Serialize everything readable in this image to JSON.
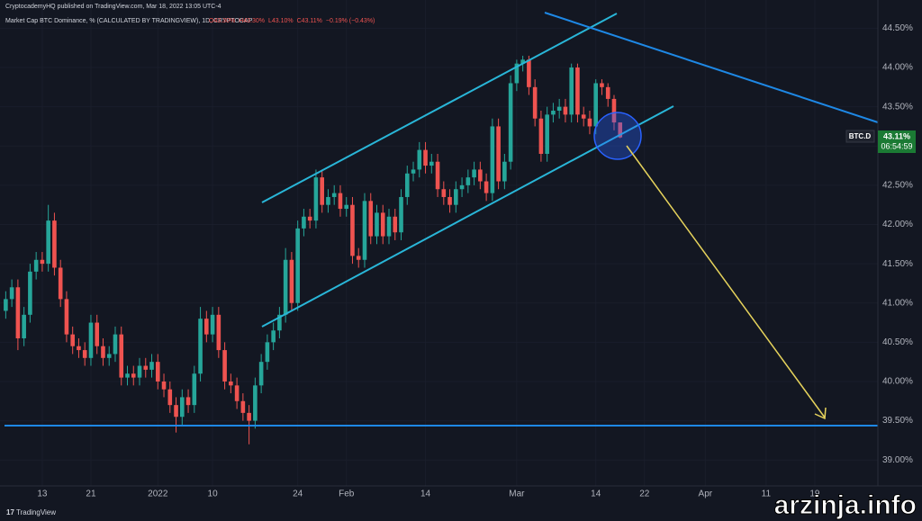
{
  "chart_data": {
    "type": "candlestick",
    "subtitle": "CryptocademyHQ published on TradingView.com, Mar 18, 2022 13:05 UTC-4",
    "title": "Market Cap BTC Dominance, % (CALCULATED BY TRADINGVIEW), 1D, CRYPTOCAP",
    "ohlc_legend": [
      "O43.30%",
      "H43.30%",
      "L43.10%",
      "C43.11%",
      "−0.19% (−0.43%)"
    ],
    "last_price": {
      "symbol": "BTC.D",
      "value_label": "43.11%",
      "countdown": "06:54:59"
    },
    "brand": "TradingView",
    "watermark": "arzinja.info",
    "up_color": "#26a69a",
    "down_color": "#ef5350",
    "grid": true,
    "ylim": [
      38.67,
      44.86
    ],
    "yticks": [
      {
        "value": 39.0,
        "label": "39.00%"
      },
      {
        "value": 39.5,
        "label": "39.50%"
      },
      {
        "value": 40.0,
        "label": "40.00%"
      },
      {
        "value": 40.5,
        "label": "40.50%"
      },
      {
        "value": 41.0,
        "label": "41.00%"
      },
      {
        "value": 41.5,
        "label": "41.50%"
      },
      {
        "value": 42.0,
        "label": "42.00%"
      },
      {
        "value": 42.5,
        "label": "42.50%"
      },
      {
        "value": 43.0,
        "label": "43.00%"
      },
      {
        "value": 43.5,
        "label": "43.50%"
      },
      {
        "value": 44.0,
        "label": "44.00%"
      },
      {
        "value": 44.5,
        "label": "44.50%"
      }
    ],
    "categories": [
      null,
      null,
      null,
      null,
      null,
      null,
      "13",
      null,
      null,
      null,
      null,
      null,
      null,
      null,
      "21",
      null,
      null,
      null,
      null,
      null,
      null,
      null,
      null,
      null,
      null,
      "2022",
      null,
      null,
      null,
      null,
      null,
      null,
      null,
      null,
      "10",
      null,
      null,
      null,
      null,
      null,
      null,
      null,
      null,
      null,
      null,
      null,
      null,
      null,
      "24",
      null,
      null,
      null,
      null,
      null,
      null,
      null,
      "Feb",
      null,
      null,
      null,
      null,
      null,
      null,
      null,
      null,
      null,
      null,
      null,
      null,
      "14",
      null,
      null,
      null,
      null,
      null,
      null,
      null,
      null,
      null,
      null,
      null,
      null,
      null,
      null,
      "Mar",
      null,
      null,
      null,
      null,
      null,
      null,
      null,
      null,
      null,
      null,
      null,
      null,
      "14",
      null,
      null,
      null,
      null,
      null,
      null,
      null,
      "22",
      null,
      null,
      null,
      null,
      null,
      null,
      null,
      null,
      null,
      "Apr",
      null,
      null,
      null,
      null,
      null,
      null,
      null,
      null,
      null,
      "11",
      null,
      null,
      null,
      null,
      null,
      null,
      null,
      "19",
      null,
      null,
      null,
      null,
      null,
      null
    ],
    "open": [
      40.9,
      41.05,
      41.2,
      40.55,
      40.85,
      41.4,
      41.55,
      41.5,
      42.05,
      41.45,
      41.05,
      40.6,
      40.45,
      40.4,
      40.3,
      40.75,
      40.45,
      40.3,
      40.35,
      40.6,
      40.05,
      40.1,
      40.05,
      40.2,
      40.15,
      40.25,
      40.0,
      39.9,
      39.7,
      39.55,
      39.8,
      39.7,
      40.1,
      40.8,
      40.6,
      40.85,
      40.4,
      40.0,
      39.95,
      39.75,
      39.6,
      39.5,
      39.95,
      40.25,
      40.5,
      40.65,
      40.85,
      41.55,
      41.0,
      41.95,
      42.1,
      42.05,
      42.6,
      42.25,
      42.35,
      42.4,
      42.2,
      42.25,
      41.6,
      41.55,
      42.3,
      41.85,
      42.15,
      41.85,
      42.1,
      41.9,
      42.35,
      42.65,
      42.7,
      42.95,
      42.75,
      42.8,
      42.45,
      42.35,
      42.25,
      42.45,
      42.5,
      42.6,
      42.7,
      42.55,
      42.4,
      43.25,
      42.55,
      42.8,
      43.8,
      44.05,
      44.1,
      43.75,
      43.35,
      42.9,
      43.4,
      43.45,
      43.5,
      43.4,
      44.0,
      43.4,
      43.35,
      43.25,
      43.8,
      43.75,
      43.6,
      43.3,
      null,
      null,
      null,
      null,
      null,
      null,
      null,
      null,
      null,
      null,
      null,
      null,
      null,
      null,
      null,
      null,
      null,
      null,
      null,
      null,
      null,
      null,
      null,
      null,
      null,
      null,
      null,
      null,
      null,
      null,
      null,
      null,
      null,
      null,
      null,
      null,
      null,
      null
    ],
    "high": [
      41.15,
      41.3,
      41.3,
      40.95,
      41.5,
      41.65,
      41.65,
      42.25,
      42.15,
      41.55,
      41.15,
      40.7,
      40.55,
      40.5,
      40.85,
      40.85,
      40.55,
      40.45,
      40.7,
      40.7,
      40.2,
      40.2,
      40.3,
      40.3,
      40.35,
      40.35,
      40.1,
      40.0,
      39.8,
      39.9,
      39.9,
      40.2,
      40.95,
      40.9,
      40.95,
      40.95,
      40.5,
      40.1,
      40.05,
      39.85,
      39.7,
      40.05,
      40.35,
      40.6,
      40.75,
      40.95,
      41.7,
      41.65,
      42.05,
      42.2,
      42.2,
      42.7,
      42.7,
      42.45,
      42.5,
      42.5,
      42.35,
      42.35,
      41.7,
      42.4,
      42.4,
      42.25,
      42.25,
      42.2,
      42.2,
      42.45,
      42.75,
      42.8,
      43.05,
      43.05,
      42.9,
      42.9,
      42.55,
      42.45,
      42.55,
      42.6,
      42.7,
      42.8,
      42.8,
      42.65,
      43.35,
      43.35,
      42.9,
      43.9,
      44.1,
      44.15,
      44.15,
      43.85,
      43.45,
      43.5,
      43.55,
      43.6,
      43.6,
      44.05,
      44.05,
      43.5,
      43.45,
      43.85,
      43.85,
      43.8,
      43.65,
      43.3,
      null,
      null,
      null,
      null,
      null,
      null,
      null,
      null,
      null,
      null,
      null,
      null,
      null,
      null,
      null,
      null,
      null,
      null,
      null,
      null,
      null,
      null,
      null,
      null,
      null,
      null,
      null,
      null,
      null,
      null,
      null,
      null,
      null,
      null,
      null,
      null,
      null,
      null
    ],
    "low": [
      40.8,
      40.95,
      40.4,
      40.45,
      40.75,
      41.3,
      41.4,
      41.4,
      41.35,
      40.95,
      40.5,
      40.35,
      40.3,
      40.2,
      40.2,
      40.35,
      40.2,
      40.2,
      40.25,
      39.95,
      39.95,
      39.95,
      39.95,
      40.05,
      40.05,
      39.9,
      39.8,
      39.6,
      39.35,
      39.45,
      39.6,
      39.6,
      40.0,
      40.5,
      40.5,
      40.3,
      39.9,
      39.85,
      39.65,
      39.5,
      39.2,
      39.4,
      39.85,
      40.15,
      40.4,
      40.55,
      40.75,
      40.9,
      40.9,
      41.85,
      41.95,
      41.95,
      42.15,
      42.15,
      42.25,
      42.1,
      42.1,
      41.5,
      41.45,
      41.45,
      41.75,
      41.75,
      41.75,
      41.75,
      41.8,
      41.8,
      42.25,
      42.55,
      42.6,
      42.65,
      42.65,
      42.35,
      42.25,
      42.15,
      42.15,
      42.35,
      42.4,
      42.5,
      42.45,
      42.3,
      42.3,
      42.45,
      42.45,
      42.7,
      43.7,
      43.95,
      43.65,
      43.25,
      42.8,
      42.8,
      43.3,
      43.35,
      43.3,
      43.3,
      43.3,
      43.25,
      43.15,
      43.15,
      43.65,
      43.5,
      43.2,
      43.1,
      null,
      null,
      null,
      null,
      null,
      null,
      null,
      null,
      null,
      null,
      null,
      null,
      null,
      null,
      null,
      null,
      null,
      null,
      null,
      null,
      null,
      null,
      null,
      null,
      null,
      null,
      null,
      null,
      null,
      null,
      null,
      null,
      null,
      null,
      null,
      null,
      null,
      null
    ],
    "close": [
      41.05,
      41.2,
      40.55,
      40.85,
      41.4,
      41.55,
      41.5,
      42.05,
      41.45,
      41.05,
      40.6,
      40.45,
      40.4,
      40.3,
      40.75,
      40.45,
      40.3,
      40.35,
      40.6,
      40.05,
      40.1,
      40.05,
      40.2,
      40.15,
      40.25,
      40.0,
      39.9,
      39.7,
      39.55,
      39.8,
      39.7,
      40.1,
      40.8,
      40.6,
      40.85,
      40.4,
      40.0,
      39.95,
      39.75,
      39.6,
      39.5,
      39.95,
      40.25,
      40.5,
      40.65,
      40.85,
      41.55,
      41.0,
      41.95,
      42.1,
      42.05,
      42.6,
      42.25,
      42.35,
      42.4,
      42.2,
      42.25,
      41.6,
      41.55,
      42.3,
      41.85,
      42.15,
      41.85,
      42.1,
      41.9,
      42.35,
      42.65,
      42.7,
      42.95,
      42.75,
      42.8,
      42.45,
      42.35,
      42.25,
      42.45,
      42.5,
      42.6,
      42.7,
      42.55,
      42.4,
      43.25,
      42.55,
      42.8,
      43.8,
      44.05,
      44.1,
      43.75,
      43.35,
      42.9,
      43.4,
      43.45,
      43.5,
      43.4,
      44.0,
      43.4,
      43.35,
      43.25,
      43.8,
      43.75,
      43.6,
      43.3,
      43.11,
      null,
      null,
      null,
      null,
      null,
      null,
      null,
      null,
      null,
      null,
      null,
      null,
      null,
      null,
      null,
      null,
      null,
      null,
      null,
      null,
      null,
      null,
      null,
      null,
      null,
      null,
      null,
      null,
      null,
      null,
      null,
      null,
      null,
      null,
      null,
      null,
      null,
      null
    ]
  }
}
